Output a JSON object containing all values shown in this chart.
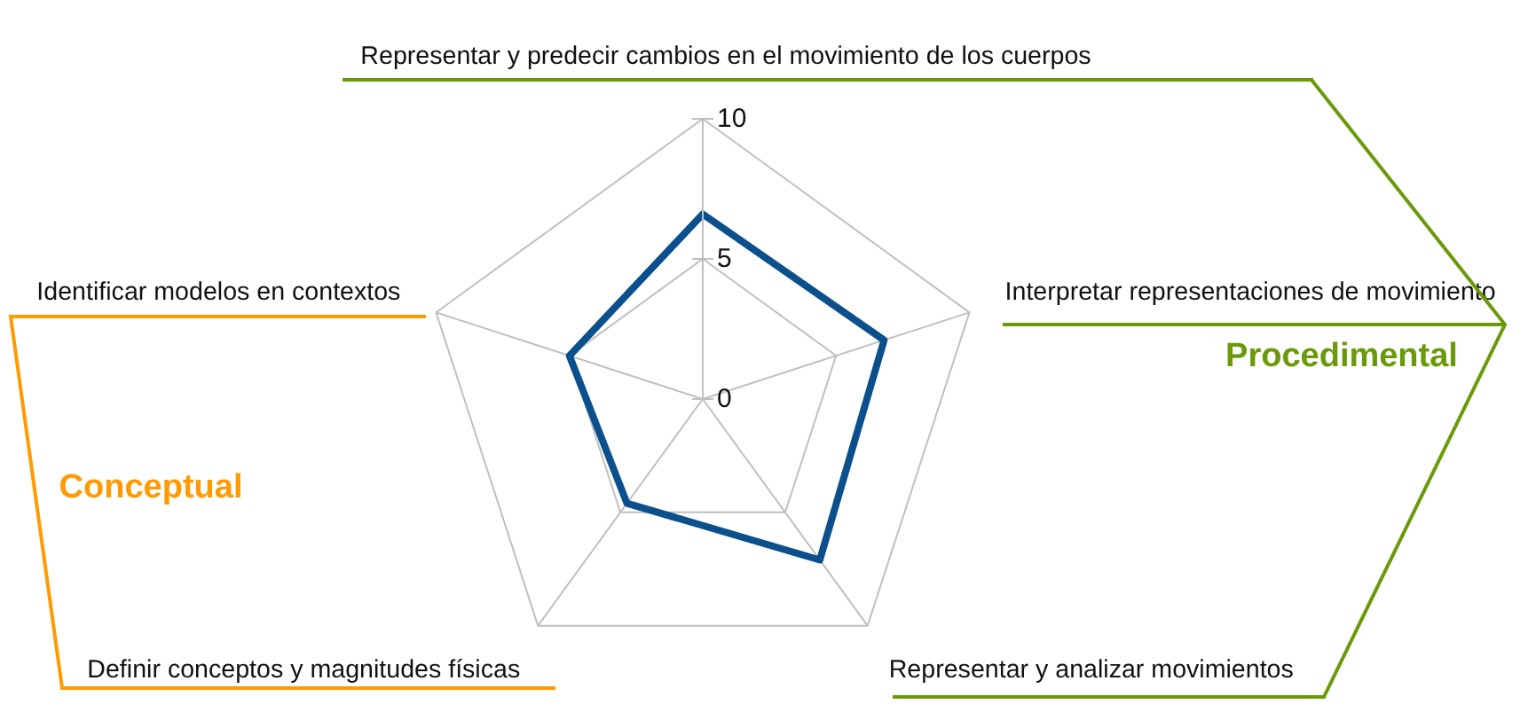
{
  "chart_data": {
    "type": "radar",
    "categories": [
      "Representar y predecir cambios en el movimiento de los cuerpos",
      "Interpretar representaciones de movimiento",
      "Representar y analizar movimientos",
      "Definir conceptos y magnitudes físicas",
      "Identificar modelos en contextos"
    ],
    "series": [
      {
        "color": "#0b4f8c",
        "values": [
          6.6,
          6.8,
          7.1,
          4.6,
          5.0
        ]
      }
    ],
    "ylim": [
      0,
      10
    ],
    "yticks": [
      0,
      5,
      10
    ],
    "grid": true,
    "annotations": [
      "Conceptual",
      "Procedimental"
    ]
  }
}
